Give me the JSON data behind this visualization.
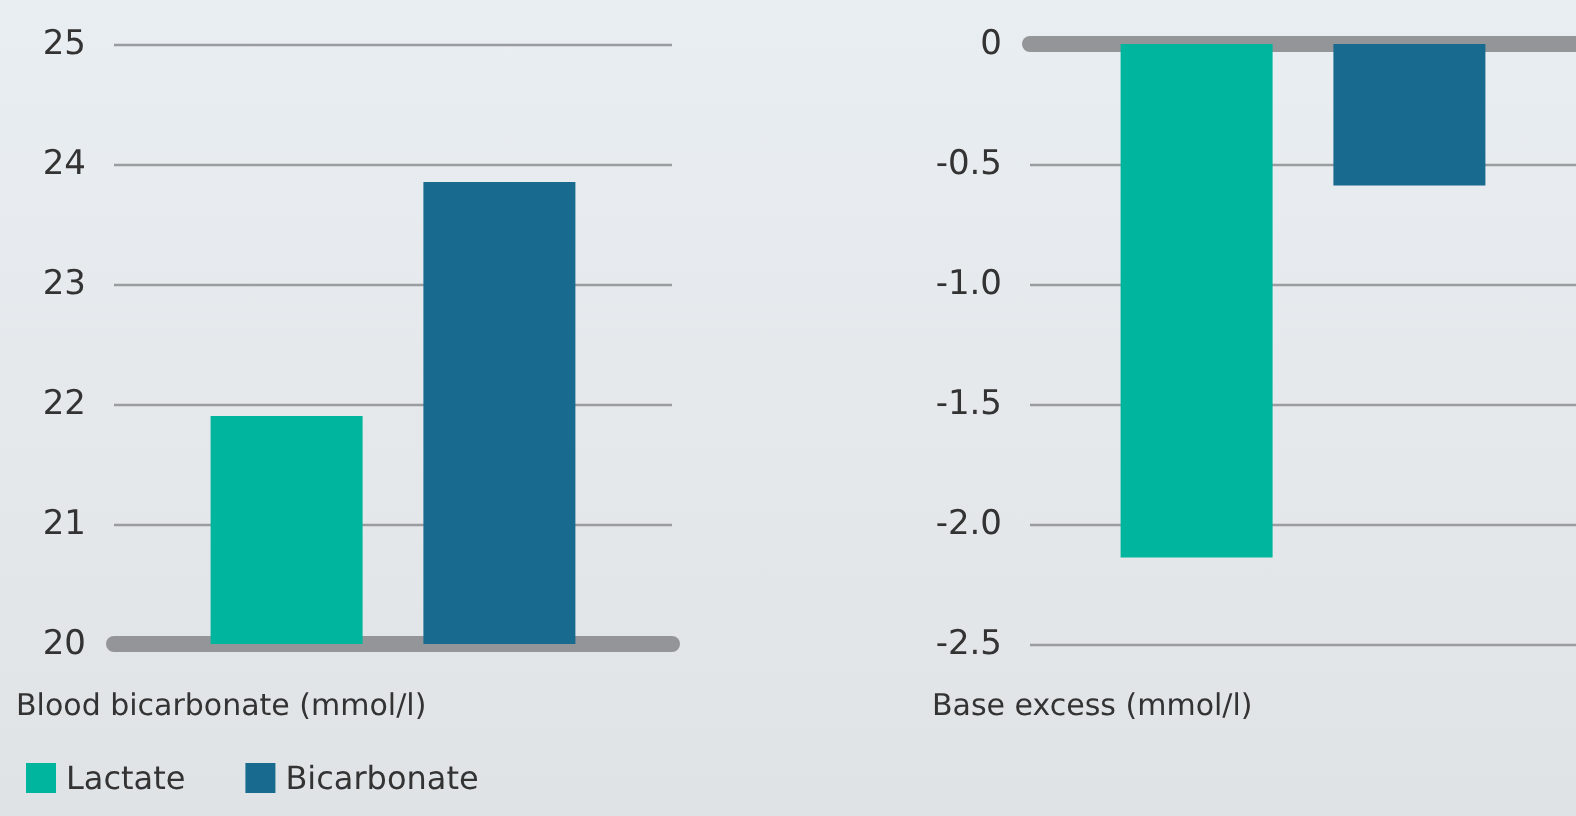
{
  "chart_data": [
    {
      "type": "bar",
      "xlabel": "Blood bicarbonate (mmol/l)",
      "categories": [
        null
      ],
      "series": [
        {
          "name": "Lactate",
          "color": "#00b59e",
          "values": [
            21.9
          ]
        },
        {
          "name": "Bicarbonate",
          "color": "#186b8e",
          "values": [
            23.85
          ]
        }
      ],
      "ylim": [
        20,
        25
      ],
      "yticks": [
        20,
        21,
        22,
        23,
        24,
        25
      ],
      "grid": "y",
      "legend": "bottom left"
    },
    {
      "type": "bar",
      "xlabel": "Base excess (mmol/l)",
      "categories": [
        null
      ],
      "series": [
        {
          "color": "#00b59e",
          "values": [
            -2.14
          ]
        },
        {
          "color": "#186b8e",
          "values": [
            -0.59
          ]
        }
      ],
      "ylim": [
        -2.5,
        0
      ],
      "yticks": [
        {
          "value": -2.5,
          "label": "-2.5"
        },
        {
          "value": -2,
          "label": "-2.0"
        },
        {
          "value": -1.5,
          "label": "-1.5"
        },
        {
          "value": -1,
          "label": "-1.0"
        },
        {
          "value": -0.5,
          "label": "-0.5"
        },
        {
          "value": 0,
          "label": "0"
        }
      ],
      "grid": "y"
    }
  ]
}
